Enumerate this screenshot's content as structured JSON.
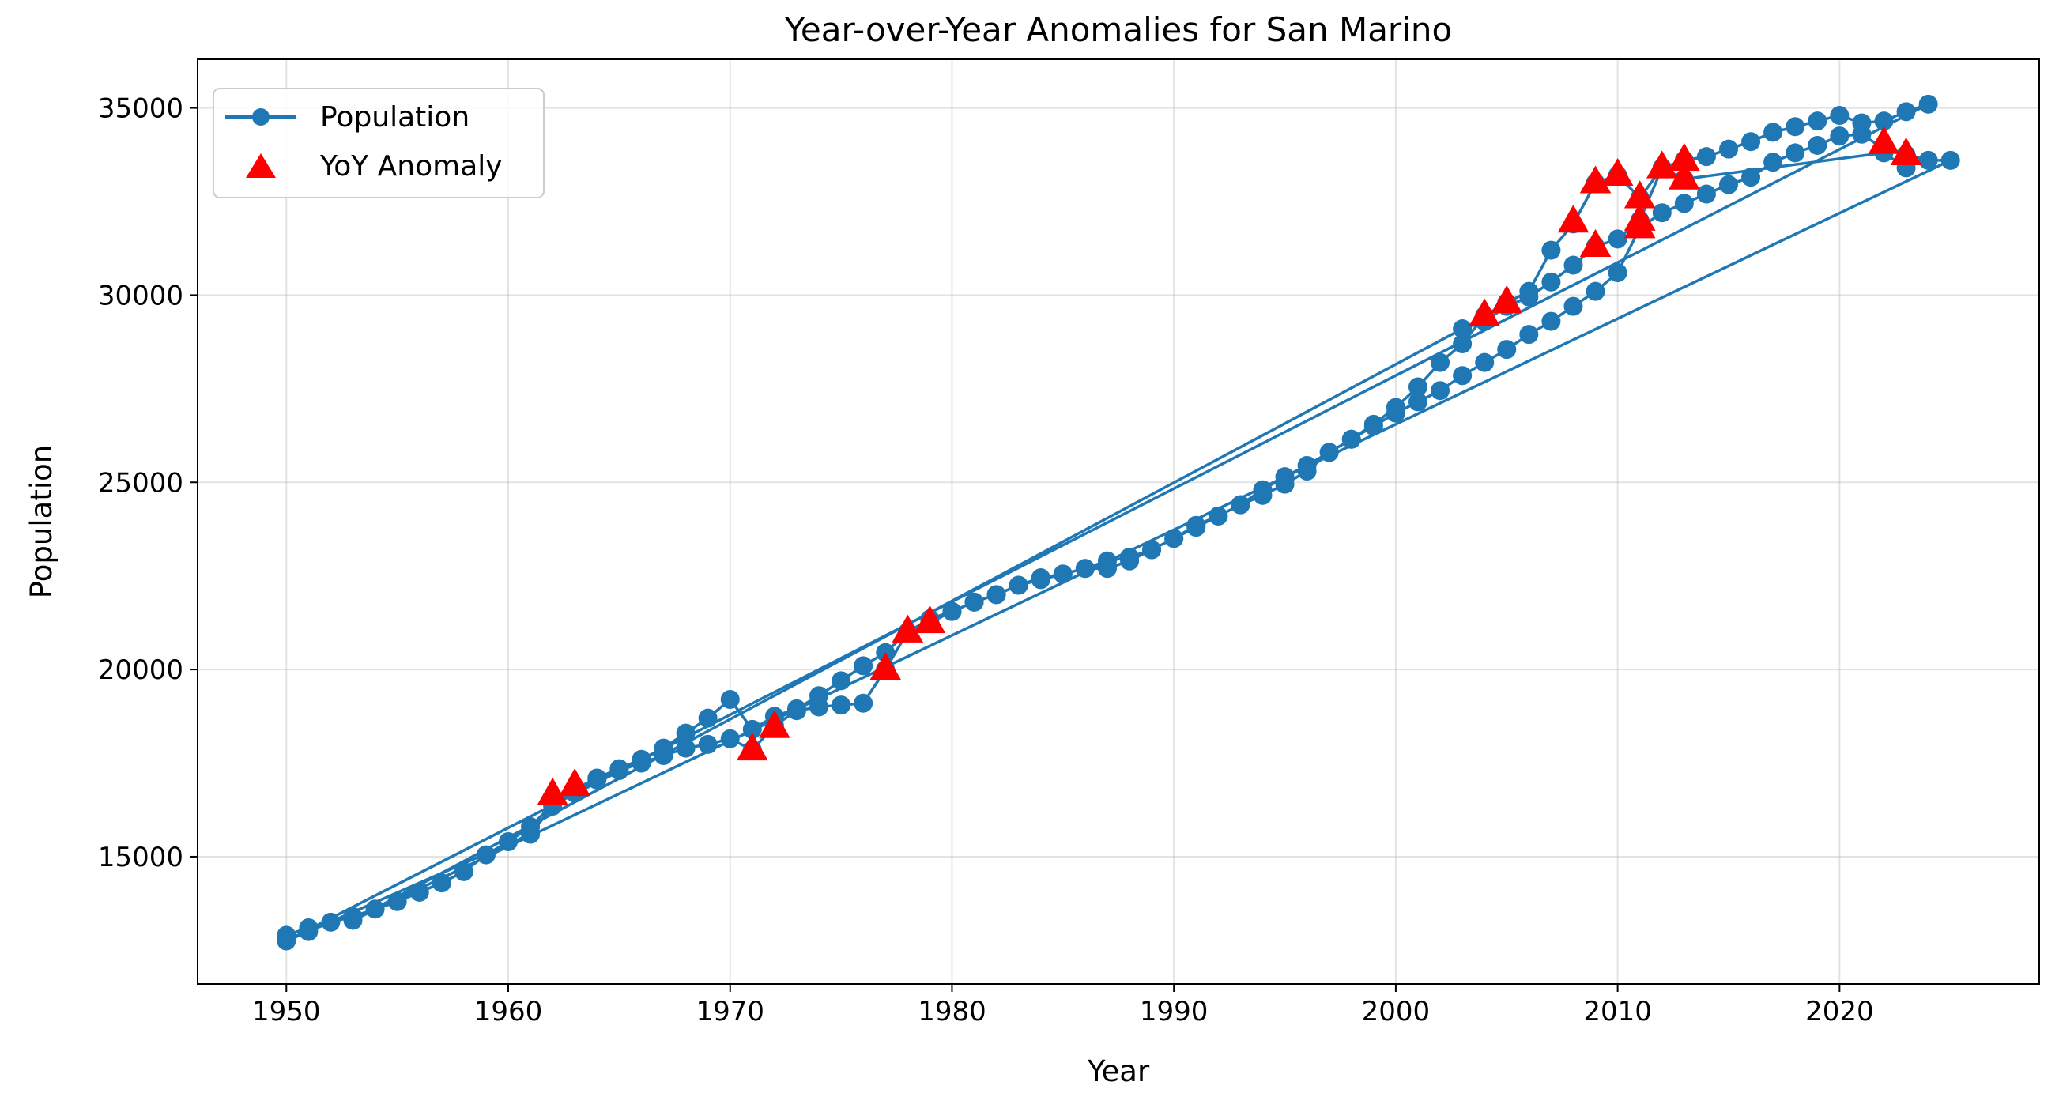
{
  "chart_data": {
    "type": "line",
    "title": "Year-over-Year Anomalies for San Marino",
    "xlabel": "Year",
    "ylabel": "Population",
    "xlim": [
      1946,
      2029
    ],
    "ylim": [
      11600,
      36300
    ],
    "xticks": [
      1950,
      1960,
      1970,
      1980,
      1990,
      2000,
      2010,
      2020
    ],
    "yticks": [
      15000,
      20000,
      25000,
      30000,
      35000
    ],
    "grid": true,
    "legend_position": "top-left",
    "series": [
      {
        "name": "Population",
        "type": "line",
        "color": "#1f77b4",
        "marker": "circle",
        "points": [
          [
            1950,
            12900
          ],
          [
            1951,
            13100
          ],
          [
            1952,
            13250
          ],
          [
            1953,
            13400
          ],
          [
            1954,
            13600
          ],
          [
            1955,
            13800
          ],
          [
            1956,
            14050
          ],
          [
            1957,
            14300
          ],
          [
            1958,
            14600
          ],
          [
            1959,
            15050
          ],
          [
            1960,
            15400
          ],
          [
            1961,
            15800
          ],
          [
            1962,
            16400
          ],
          [
            1963,
            16800
          ],
          [
            1964,
            17100
          ],
          [
            1965,
            17350
          ],
          [
            1966,
            17600
          ],
          [
            1967,
            17900
          ],
          [
            1968,
            18300
          ],
          [
            1969,
            18700
          ],
          [
            1970,
            19200
          ],
          [
            1971,
            18400
          ],
          [
            1972,
            18750
          ],
          [
            1973,
            18950
          ],
          [
            1974,
            19300
          ],
          [
            1975,
            19700
          ],
          [
            1976,
            20100
          ],
          [
            1977,
            20450
          ],
          [
            1978,
            21000
          ],
          [
            1979,
            21350
          ],
          [
            1980,
            21550
          ],
          [
            1981,
            21800
          ],
          [
            1982,
            22000
          ],
          [
            1983,
            22250
          ],
          [
            1984,
            22450
          ],
          [
            1985,
            22550
          ],
          [
            1986,
            22700
          ],
          [
            1987,
            22900
          ],
          [
            1988,
            23000
          ],
          [
            1989,
            23200
          ],
          [
            1990,
            23500
          ],
          [
            1991,
            23850
          ],
          [
            1992,
            24100
          ],
          [
            1993,
            24400
          ],
          [
            1994,
            24800
          ],
          [
            1995,
            25150
          ],
          [
            1996,
            25450
          ],
          [
            1997,
            25800
          ],
          [
            1998,
            26150
          ],
          [
            1999,
            26550
          ],
          [
            2000,
            27000
          ],
          [
            2001,
            27550
          ],
          [
            2002,
            28200
          ],
          [
            2003,
            28700
          ],
          [
            2004,
            29450
          ],
          [
            2005,
            29800
          ],
          [
            2006,
            30100
          ],
          [
            2007,
            31200
          ],
          [
            2008,
            31900
          ],
          [
            2009,
            33000
          ],
          [
            2010,
            33200
          ],
          [
            2011,
            32600
          ],
          [
            2012,
            33400
          ],
          [
            2013,
            33600
          ],
          [
            2014,
            33700
          ],
          [
            2015,
            33900
          ],
          [
            2016,
            34100
          ],
          [
            2017,
            34350
          ],
          [
            2018,
            34500
          ],
          [
            2019,
            34650
          ],
          [
            2020,
            34800
          ],
          [
            2021,
            34600
          ],
          [
            2022,
            34650
          ],
          [
            2023,
            34900
          ],
          [
            2024,
            35100
          ],
          [
            1950,
            12750
          ],
          [
            1951,
            13000
          ],
          [
            1961,
            15600
          ],
          [
            1962,
            16350
          ],
          [
            1963,
            16700
          ],
          [
            1964,
            17050
          ],
          [
            1965,
            17300
          ],
          [
            1966,
            17500
          ],
          [
            1967,
            17700
          ],
          [
            1968,
            17900
          ],
          [
            1969,
            18000
          ],
          [
            1970,
            18150
          ],
          [
            1971,
            17850
          ],
          [
            1972,
            18500
          ],
          [
            1973,
            18900
          ],
          [
            1974,
            19000
          ],
          [
            1975,
            19050
          ],
          [
            1976,
            19100
          ],
          [
            1977,
            20000
          ],
          [
            1978,
            21000
          ],
          [
            1979,
            21250
          ],
          [
            1980,
            21550
          ],
          [
            1981,
            21800
          ],
          [
            1982,
            22000
          ],
          [
            1983,
            22250
          ],
          [
            1984,
            22400
          ],
          [
            1985,
            22550
          ],
          [
            1986,
            22700
          ],
          [
            1987,
            22700
          ],
          [
            1988,
            22900
          ],
          [
            1989,
            23200
          ],
          [
            1990,
            23500
          ],
          [
            1991,
            23800
          ],
          [
            1992,
            24100
          ],
          [
            1993,
            24400
          ],
          [
            1994,
            24650
          ],
          [
            1995,
            24950
          ],
          [
            1996,
            25300
          ],
          [
            1997,
            25800
          ],
          [
            1998,
            26150
          ],
          [
            1999,
            26500
          ],
          [
            2000,
            26850
          ],
          [
            2001,
            27150
          ],
          [
            2002,
            27450
          ],
          [
            2003,
            27850
          ],
          [
            2004,
            28200
          ],
          [
            2005,
            28550
          ],
          [
            2006,
            28950
          ],
          [
            2007,
            29300
          ],
          [
            2008,
            29700
          ],
          [
            2009,
            30100
          ],
          [
            2010,
            30600
          ],
          [
            2011,
            31800
          ],
          [
            2012,
            32200
          ],
          [
            2013,
            32450
          ],
          [
            2014,
            32700
          ],
          [
            2015,
            32950
          ],
          [
            2016,
            33150
          ],
          [
            2017,
            33550
          ],
          [
            2018,
            33800
          ],
          [
            2019,
            34000
          ],
          [
            2020,
            34250
          ],
          [
            2021,
            34300
          ],
          [
            2022,
            33900
          ],
          [
            2023,
            33750
          ],
          [
            2024,
            33600
          ],
          [
            2025,
            33600
          ],
          [
            1953,
            13300
          ],
          [
            2003,
            29100
          ],
          [
            2004,
            29300
          ],
          [
            2005,
            29700
          ],
          [
            2006,
            29950
          ],
          [
            2007,
            30350
          ],
          [
            2008,
            30800
          ],
          [
            2009,
            31300
          ],
          [
            2010,
            31500
          ],
          [
            2011,
            32000
          ],
          [
            2012,
            33400
          ],
          [
            2013,
            33100
          ],
          [
            2022,
            33800
          ],
          [
            2023,
            33400
          ]
        ]
      },
      {
        "name": "YoY Anomaly",
        "type": "scatter",
        "color": "#ff0000",
        "marker": "triangle",
        "points": [
          [
            1962,
            16650
          ],
          [
            1963,
            16900
          ],
          [
            1971,
            17850
          ],
          [
            1972,
            18450
          ],
          [
            1977,
            20000
          ],
          [
            1978,
            21000
          ],
          [
            1979,
            21250
          ],
          [
            2004,
            29450
          ],
          [
            2005,
            29800
          ],
          [
            2008,
            31950
          ],
          [
            2009,
            33000
          ],
          [
            2009,
            31300
          ],
          [
            2010,
            33200
          ],
          [
            2011,
            32600
          ],
          [
            2011,
            32000
          ],
          [
            2011,
            31800
          ],
          [
            2012,
            33400
          ],
          [
            2013,
            33600
          ],
          [
            2013,
            33100
          ],
          [
            2022,
            34050
          ],
          [
            2023,
            33750
          ]
        ]
      }
    ]
  }
}
